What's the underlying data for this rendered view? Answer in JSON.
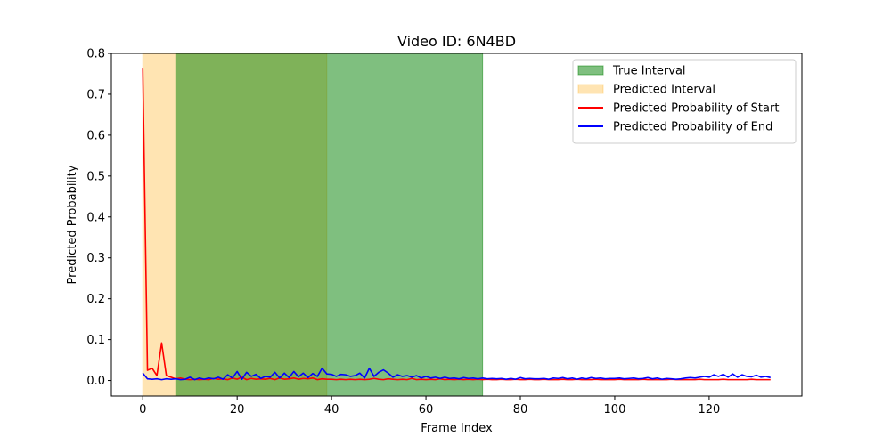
{
  "chart_data": {
    "type": "line",
    "title": "Video ID: 6N4BD",
    "xlabel": "Frame Index",
    "ylabel": "Predicted Probability",
    "xlim": [
      -6.65,
      139.65
    ],
    "ylim": [
      -0.038,
      0.8
    ],
    "xticks": [
      0,
      20,
      40,
      60,
      80,
      100,
      120
    ],
    "xtick_labels": [
      "0",
      "20",
      "40",
      "60",
      "80",
      "100",
      "120"
    ],
    "yticks": [
      0.0,
      0.1,
      0.2,
      0.3,
      0.4,
      0.5,
      0.6,
      0.7,
      0.8
    ],
    "ytick_labels": [
      "0.0",
      "0.1",
      "0.2",
      "0.3",
      "0.4",
      "0.5",
      "0.6",
      "0.7",
      "0.8"
    ],
    "grid": false,
    "legend_position": "top-right",
    "intervals": [
      {
        "name": "Predicted Interval",
        "start": 0,
        "end": 39,
        "color": "#ffa500",
        "opacity": 0.3
      },
      {
        "name": "True Interval",
        "start": 7,
        "end": 72,
        "color": "#008000",
        "opacity": 0.5
      }
    ],
    "legend": [
      {
        "label": "True Interval",
        "kind": "patch",
        "color": "#008000",
        "opacity": 0.5
      },
      {
        "label": "Predicted Interval",
        "kind": "patch",
        "color": "#ffa500",
        "opacity": 0.3
      },
      {
        "label": "Predicted Probability of Start",
        "kind": "line",
        "color": "#ff0000"
      },
      {
        "label": "Predicted Probability of End",
        "kind": "line",
        "color": "#0000ff"
      }
    ],
    "series": [
      {
        "name": "Predicted Probability of Start",
        "color": "#ff0000",
        "values": [
          0.765,
          0.025,
          0.03,
          0.012,
          0.092,
          0.012,
          0.008,
          0.004,
          0.006,
          0.003,
          0.002,
          0.003,
          0.002,
          0.003,
          0.002,
          0.005,
          0.003,
          0.004,
          0.002,
          0.006,
          0.003,
          0.008,
          0.002,
          0.005,
          0.003,
          0.004,
          0.003,
          0.005,
          0.002,
          0.006,
          0.003,
          0.004,
          0.006,
          0.003,
          0.005,
          0.004,
          0.006,
          0.002,
          0.004,
          0.003,
          0.003,
          0.002,
          0.003,
          0.002,
          0.003,
          0.002,
          0.003,
          0.002,
          0.003,
          0.005,
          0.003,
          0.002,
          0.004,
          0.003,
          0.002,
          0.003,
          0.002,
          0.005,
          0.002,
          0.003,
          0.002,
          0.003,
          0.002,
          0.004,
          0.002,
          0.003,
          0.002,
          0.003,
          0.002,
          0.003,
          0.002,
          0.003,
          0.002,
          0.003,
          0.002,
          0.002,
          0.003,
          0.002,
          0.002,
          0.003,
          0.002,
          0.002,
          0.003,
          0.002,
          0.002,
          0.003,
          0.002,
          0.002,
          0.002,
          0.003,
          0.002,
          0.002,
          0.003,
          0.002,
          0.002,
          0.002,
          0.003,
          0.002,
          0.002,
          0.002,
          0.002,
          0.003,
          0.002,
          0.002,
          0.002,
          0.002,
          0.003,
          0.002,
          0.002,
          0.002,
          0.002,
          0.002,
          0.003,
          0.002,
          0.002,
          0.002,
          0.002,
          0.002,
          0.003,
          0.002,
          0.002,
          0.002,
          0.002,
          0.003,
          0.002,
          0.002,
          0.002,
          0.002,
          0.002,
          0.003,
          0.002,
          0.002,
          0.002,
          0.002
        ]
      },
      {
        "name": "Predicted Probability of End",
        "color": "#0000ff",
        "values": [
          0.018,
          0.004,
          0.003,
          0.004,
          0.002,
          0.004,
          0.003,
          0.004,
          0.002,
          0.003,
          0.008,
          0.002,
          0.006,
          0.003,
          0.006,
          0.004,
          0.008,
          0.003,
          0.014,
          0.006,
          0.022,
          0.003,
          0.02,
          0.01,
          0.015,
          0.005,
          0.01,
          0.008,
          0.02,
          0.006,
          0.018,
          0.007,
          0.022,
          0.009,
          0.018,
          0.007,
          0.017,
          0.01,
          0.03,
          0.016,
          0.015,
          0.01,
          0.015,
          0.014,
          0.01,
          0.012,
          0.018,
          0.006,
          0.03,
          0.01,
          0.02,
          0.026,
          0.018,
          0.008,
          0.014,
          0.01,
          0.012,
          0.008,
          0.012,
          0.006,
          0.01,
          0.006,
          0.008,
          0.005,
          0.008,
          0.005,
          0.006,
          0.004,
          0.007,
          0.005,
          0.006,
          0.004,
          0.006,
          0.004,
          0.005,
          0.004,
          0.005,
          0.003,
          0.005,
          0.003,
          0.007,
          0.004,
          0.005,
          0.004,
          0.004,
          0.005,
          0.003,
          0.006,
          0.005,
          0.007,
          0.004,
          0.006,
          0.003,
          0.006,
          0.004,
          0.007,
          0.005,
          0.006,
          0.004,
          0.005,
          0.005,
          0.006,
          0.004,
          0.005,
          0.006,
          0.004,
          0.005,
          0.007,
          0.004,
          0.006,
          0.003,
          0.005,
          0.004,
          0.003,
          0.004,
          0.006,
          0.007,
          0.006,
          0.008,
          0.01,
          0.008,
          0.014,
          0.01,
          0.015,
          0.008,
          0.016,
          0.008,
          0.014,
          0.01,
          0.009,
          0.013,
          0.008,
          0.01,
          0.007
        ]
      }
    ]
  }
}
